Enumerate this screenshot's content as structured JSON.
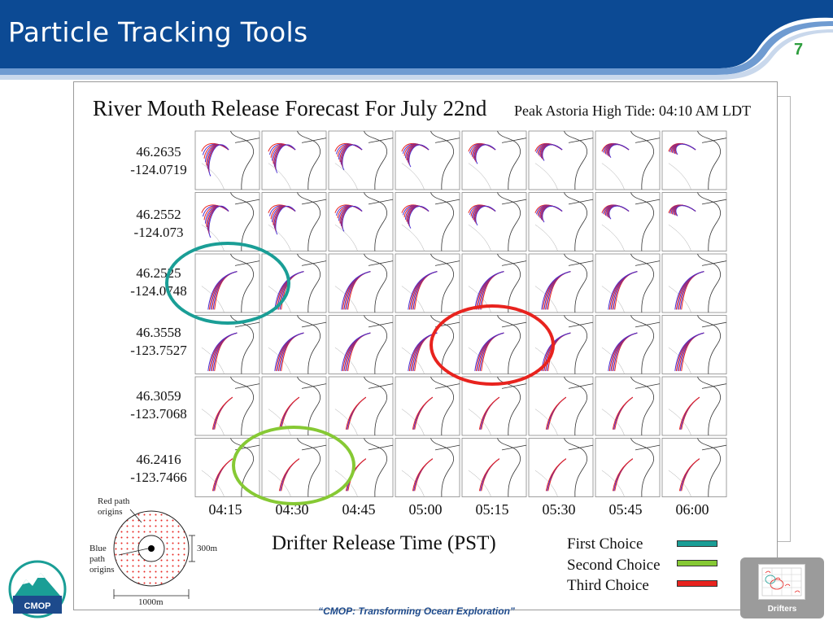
{
  "slide": {
    "title": "Particle Tracking Tools",
    "number": "7",
    "footer": "“CMOP: Transforming Ocean Exploration”",
    "logo_text": "CMOP"
  },
  "colors": {
    "header_blue": "#0c4a94",
    "red_path": "#e8231e",
    "blue_path": "#4a2fd1",
    "first_choice": "#1a9e96",
    "second_choice": "#86c934",
    "third_choice": "#e8231e"
  },
  "figure": {
    "title": "River Mouth Release Forecast For July 22nd",
    "subtitle": "Peak Astoria High Tide: 04:10 AM LDT",
    "xlabel": "Drifter Release Time (PST)",
    "release_times": [
      "04:15",
      "04:30",
      "04:45",
      "05:00",
      "05:15",
      "05:30",
      "05:45",
      "06:00"
    ],
    "release_points": [
      {
        "lat": "46.2635",
        "lon": "-124.0719"
      },
      {
        "lat": "46.2552",
        "lon": "-124.073"
      },
      {
        "lat": "46.2525",
        "lon": "-124.0748"
      },
      {
        "lat": "46.3558",
        "lon": "-123.7527"
      },
      {
        "lat": "46.3059",
        "lon": "-123.7068"
      },
      {
        "lat": "46.2416",
        "lon": "-123.7466"
      }
    ],
    "legend": {
      "first": "First Choice",
      "second": "Second Choice",
      "third": "Third Choice"
    },
    "inset": {
      "red_label_1": "Red path",
      "red_label_2": "origins",
      "blue_label_1": "Blue",
      "blue_label_2": "path",
      "blue_label_3": "origins",
      "scale_small": "300m",
      "scale_large": "1000m"
    }
  },
  "thumbnail": {
    "label": "Drifters"
  }
}
